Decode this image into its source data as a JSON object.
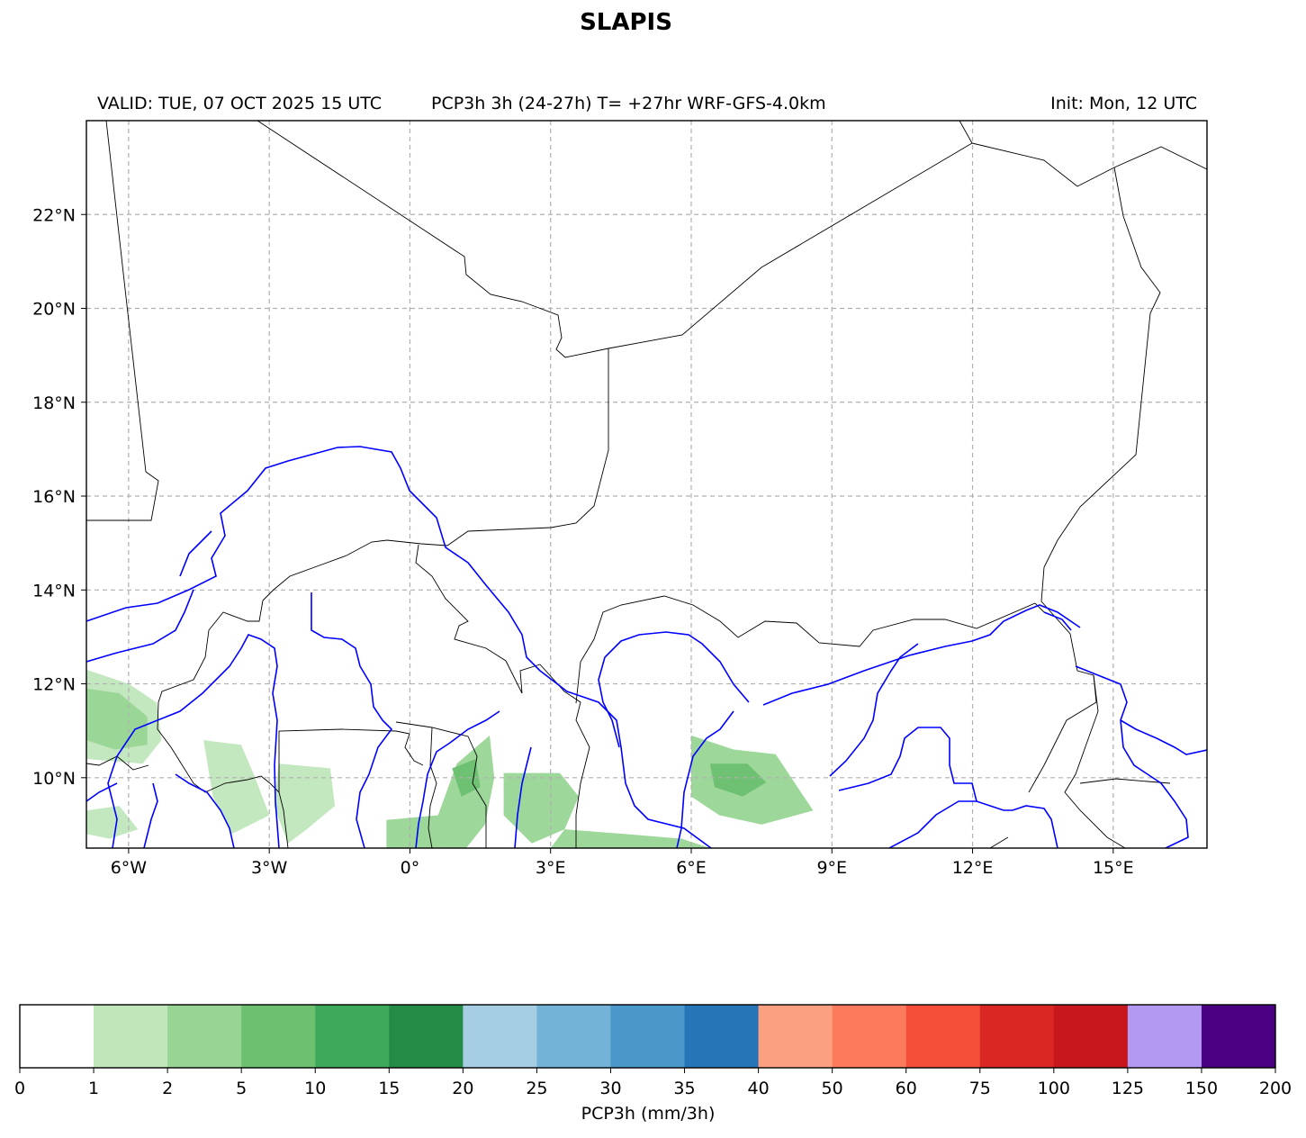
{
  "title": "SLAPIS",
  "header": {
    "valid": "VALID: TUE, 07 OCT 2025 15 UTC",
    "product": "PCP3h 3h (24-27h) T= +27hr WRF-GFS-4.0km",
    "init": "Init: Mon, 12 UTC"
  },
  "map": {
    "lon_range": [
      -6.9,
      17.0
    ],
    "lat_range": [
      8.5,
      24.0
    ],
    "lon_ticks": [
      {
        "value": -6,
        "label": "6°W"
      },
      {
        "value": -3,
        "label": "3°W"
      },
      {
        "value": 0,
        "label": "0°"
      },
      {
        "value": 3,
        "label": "3°E"
      },
      {
        "value": 6,
        "label": "6°E"
      },
      {
        "value": 9,
        "label": "9°E"
      },
      {
        "value": 12,
        "label": "12°E"
      },
      {
        "value": 15,
        "label": "15°E"
      }
    ],
    "lat_ticks": [
      {
        "value": 10,
        "label": "10°N"
      },
      {
        "value": 12,
        "label": "12°N"
      },
      {
        "value": 14,
        "label": "14°N"
      },
      {
        "value": 16,
        "label": "16°N"
      },
      {
        "value": 18,
        "label": "18°N"
      },
      {
        "value": 20,
        "label": "20°N"
      },
      {
        "value": 22,
        "label": "22°N"
      }
    ],
    "gridlines": true,
    "colors": {
      "border": "#000000",
      "river": "#0000ff",
      "grid": "#b0b0b0"
    }
  },
  "colorbar": {
    "label": "PCP3h (mm/3h)",
    "levels": [
      "0",
      "1",
      "2",
      "5",
      "10",
      "15",
      "20",
      "25",
      "30",
      "35",
      "40",
      "50",
      "60",
      "75",
      "100",
      "125",
      "150",
      "200"
    ],
    "colors": [
      "#ffffff",
      "#c0e6ba",
      "#98d594",
      "#6cc070",
      "#3ea95b",
      "#238b45",
      "#a6cee3",
      "#74b3d8",
      "#4a98c9",
      "#2575b7",
      "#fca082",
      "#fc7b5d",
      "#f44d38",
      "#da2723",
      "#c9181d",
      "#b399f2",
      "#4b0082"
    ]
  },
  "precip_areas": [
    {
      "level": "1-2",
      "color": "#c0e6ba",
      "lon_lat": [
        [
          -6.9,
          12.3
        ],
        [
          -6.0,
          12.0
        ],
        [
          -5.4,
          11.6
        ],
        [
          -5.3,
          10.8
        ],
        [
          -5.7,
          10.3
        ],
        [
          -6.9,
          10.4
        ]
      ]
    },
    {
      "level": "2-5",
      "color": "#98d594",
      "lon_lat": [
        [
          -6.9,
          11.9
        ],
        [
          -6.2,
          11.8
        ],
        [
          -5.6,
          11.3
        ],
        [
          -5.6,
          10.7
        ],
        [
          -6.3,
          10.6
        ],
        [
          -6.9,
          10.8
        ]
      ]
    },
    {
      "level": "1-2",
      "color": "#c0e6ba",
      "lon_lat": [
        [
          -6.9,
          9.3
        ],
        [
          -6.2,
          9.4
        ],
        [
          -5.8,
          8.9
        ],
        [
          -6.4,
          8.7
        ],
        [
          -6.9,
          8.8
        ]
      ]
    },
    {
      "level": "1-2",
      "color": "#c0e6ba",
      "lon_lat": [
        [
          -4.4,
          10.8
        ],
        [
          -3.6,
          10.7
        ],
        [
          -3.3,
          10.0
        ],
        [
          -3.0,
          9.2
        ],
        [
          -3.8,
          8.8
        ],
        [
          -4.2,
          9.6
        ]
      ]
    },
    {
      "level": "1-2",
      "color": "#c0e6ba",
      "lon_lat": [
        [
          -2.8,
          10.3
        ],
        [
          -1.7,
          10.2
        ],
        [
          -1.6,
          9.4
        ],
        [
          -2.2,
          8.9
        ],
        [
          -2.6,
          8.6
        ],
        [
          -2.9,
          9.4
        ]
      ]
    },
    {
      "level": "2-5",
      "color": "#98d594",
      "lon_lat": [
        [
          -0.5,
          9.1
        ],
        [
          0.6,
          9.2
        ],
        [
          1.0,
          10.3
        ],
        [
          1.7,
          10.9
        ],
        [
          1.8,
          10.0
        ],
        [
          1.6,
          9.0
        ],
        [
          1.2,
          8.5
        ],
        [
          -0.5,
          8.5
        ]
      ]
    },
    {
      "level": "5-10",
      "color": "#6cc070",
      "lon_lat": [
        [
          0.9,
          10.2
        ],
        [
          1.4,
          10.4
        ],
        [
          1.5,
          9.8
        ],
        [
          1.1,
          9.6
        ]
      ]
    },
    {
      "level": "2-5",
      "color": "#98d594",
      "lon_lat": [
        [
          2.0,
          10.1
        ],
        [
          3.2,
          10.1
        ],
        [
          3.6,
          9.6
        ],
        [
          3.3,
          8.9
        ],
        [
          2.6,
          8.6
        ],
        [
          2.0,
          9.2
        ]
      ]
    },
    {
      "level": "2-5",
      "color": "#98d594",
      "lon_lat": [
        [
          3.3,
          8.9
        ],
        [
          4.6,
          8.8
        ],
        [
          5.8,
          8.7
        ],
        [
          6.4,
          8.5
        ],
        [
          3.0,
          8.5
        ]
      ]
    },
    {
      "level": "2-5",
      "color": "#98d594",
      "lon_lat": [
        [
          6.0,
          10.9
        ],
        [
          6.9,
          10.6
        ],
        [
          7.8,
          10.5
        ],
        [
          8.2,
          9.9
        ],
        [
          8.6,
          9.3
        ],
        [
          7.5,
          9.0
        ],
        [
          6.6,
          9.2
        ],
        [
          6.0,
          9.6
        ]
      ]
    },
    {
      "level": "5-10",
      "color": "#6cc070",
      "lon_lat": [
        [
          6.4,
          10.3
        ],
        [
          7.2,
          10.3
        ],
        [
          7.6,
          9.9
        ],
        [
          7.1,
          9.6
        ],
        [
          6.5,
          9.8
        ]
      ]
    }
  ]
}
